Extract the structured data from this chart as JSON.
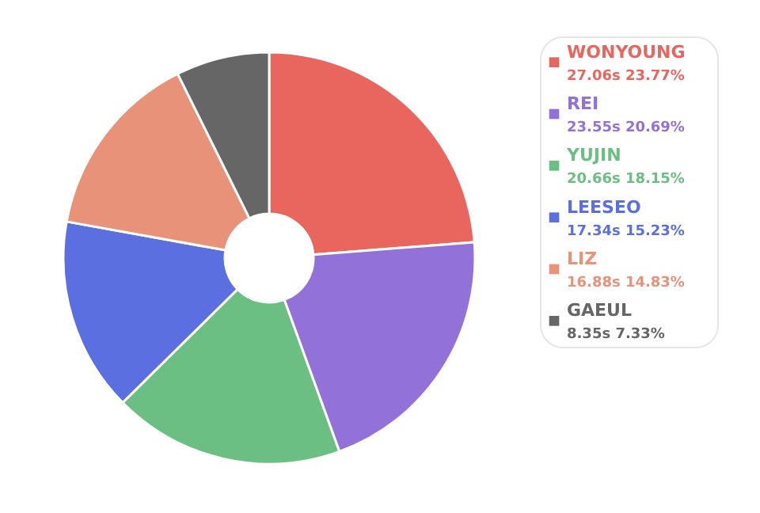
{
  "chart_data": {
    "type": "donut",
    "categories": [
      "WONYOUNG",
      "REI",
      "YUJIN",
      "LEESEO",
      "LIZ",
      "GAEUL"
    ],
    "values": [
      27.06,
      23.55,
      20.66,
      17.34,
      16.88,
      8.35
    ],
    "value_labels": [
      "27.06s 23.77%",
      "23.55s 20.69%",
      "20.66s 18.15%",
      "17.34s 15.23%",
      "16.88s 14.83%",
      "8.35s 7.33%"
    ],
    "colors": [
      "#e8665e",
      "#9272d8",
      "#6bbf82",
      "#5b6fe0",
      "#e8927a",
      "#666666"
    ],
    "legend": "right"
  }
}
